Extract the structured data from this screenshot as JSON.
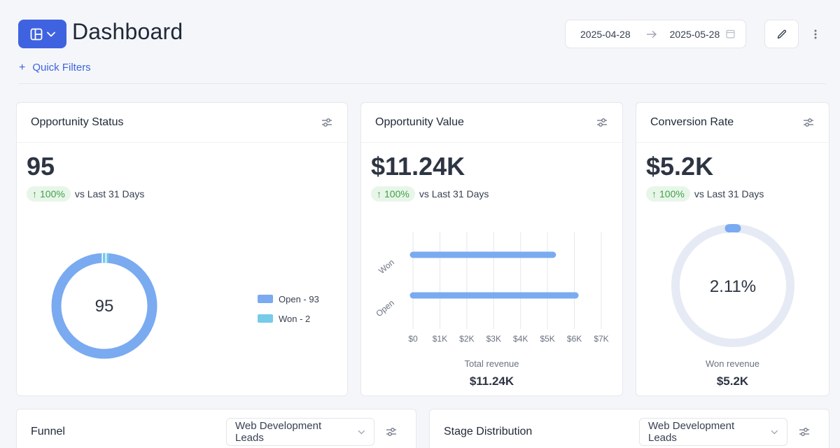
{
  "header": {
    "title": "Dashboard",
    "quick_filters": "Quick Filters",
    "date_from": "2025-04-28",
    "date_to": "2025-05-28"
  },
  "colors": {
    "accent": "#3f63e0",
    "bar_blue": "#7aaaf0",
    "won_cyan": "#76cbe8",
    "positive_green": "#43a047",
    "ring_track": "#e6eaf5"
  },
  "cards": {
    "opportunity_status": {
      "title": "Opportunity Status",
      "value": "95",
      "delta": "100%",
      "delta_label": "vs Last 31 Days",
      "donut_center": "95",
      "legend": [
        {
          "label": "Open - 93",
          "value": 93,
          "color": "#7aaaf0"
        },
        {
          "label": "Won - 2",
          "value": 2,
          "color": "#76cbe8"
        }
      ]
    },
    "opportunity_value": {
      "title": "Opportunity Value",
      "value": "$11.24K",
      "delta": "100%",
      "delta_label": "vs Last 31 Days",
      "caption": "Total revenue",
      "total": "$11.24K"
    },
    "conversion_rate": {
      "title": "Conversion Rate",
      "value": "$5.2K",
      "delta": "100%",
      "delta_label": "vs Last 31 Days",
      "gauge_label": "2.11%",
      "gauge_value": 2.11,
      "caption": "Won revenue",
      "total": "$5.2K"
    },
    "funnel": {
      "title": "Funnel",
      "dropdown": "Web Development Leads"
    },
    "stage_distribution": {
      "title": "Stage Distribution",
      "dropdown": "Web Development Leads"
    }
  },
  "chart_data": {
    "type": "bar",
    "orientation": "horizontal",
    "categories": [
      "Won",
      "Open"
    ],
    "values": [
      5200,
      6040
    ],
    "xlim": [
      0,
      7000
    ],
    "tick_labels": [
      "$0",
      "$1K",
      "$2K",
      "$3K",
      "$4K",
      "$5K",
      "$6K",
      "$7K"
    ],
    "xlabel": "Total revenue",
    "grid": true
  }
}
